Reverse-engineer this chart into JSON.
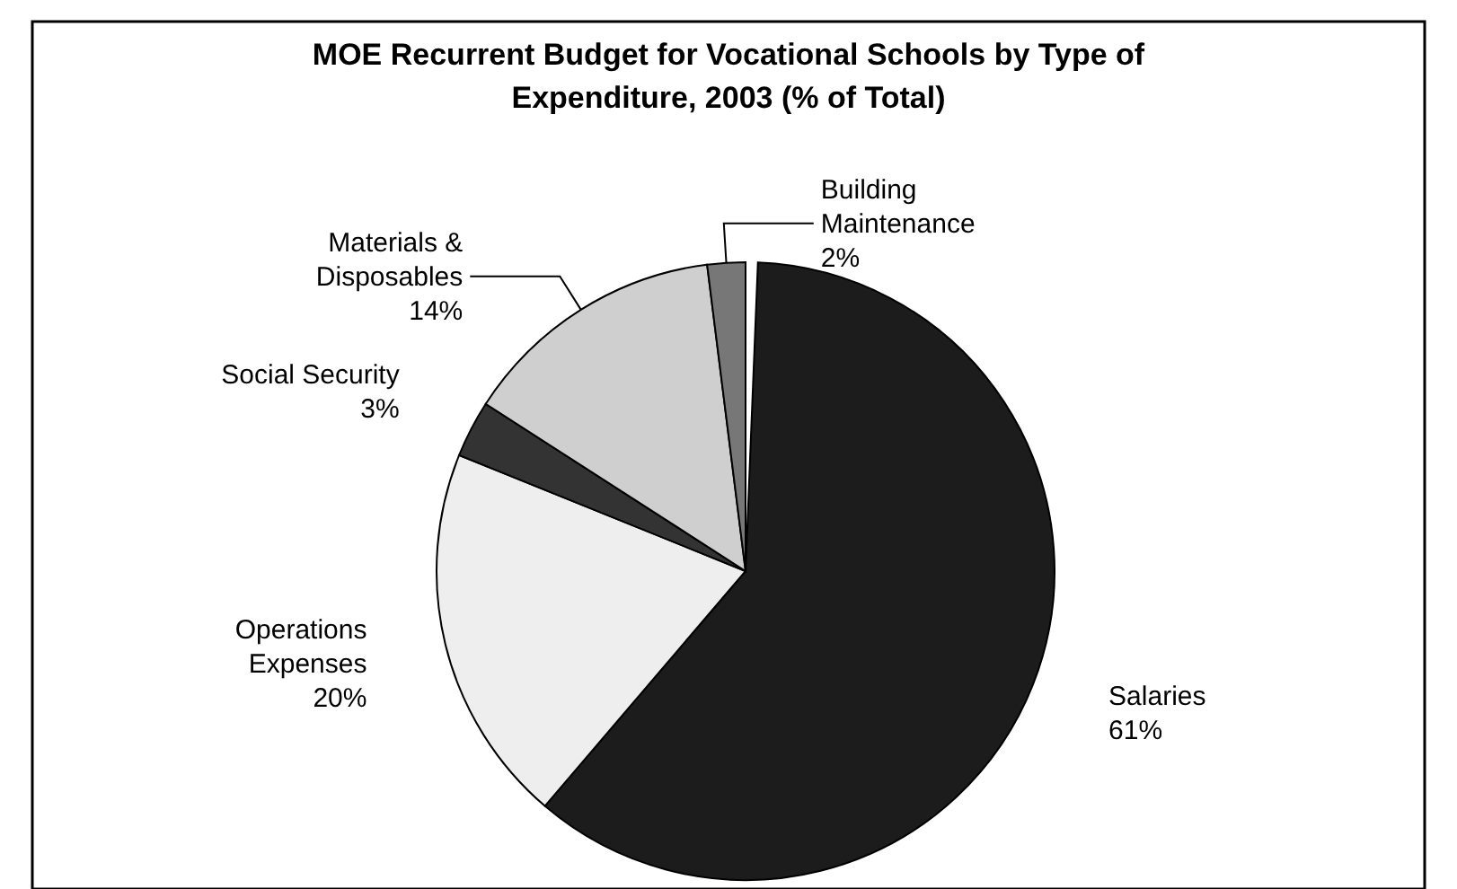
{
  "chart_data": {
    "type": "pie",
    "title": "MOE Recurrent Budget for Vocational Schools by Type of Expenditure, 2003 (% of Total)",
    "categories": [
      "Salaries",
      "Operations Expenses",
      "Social Security",
      "Materials & Disposables",
      "Building Maintenance"
    ],
    "values": [
      61,
      20,
      3,
      14,
      2
    ],
    "value_labels": [
      "61%",
      "20%",
      "3%",
      "14%",
      "2%"
    ],
    "colors": [
      "#1c1c1c",
      "#eeeeee",
      "#333333",
      "#cfcfcf",
      "#777777"
    ]
  }
}
